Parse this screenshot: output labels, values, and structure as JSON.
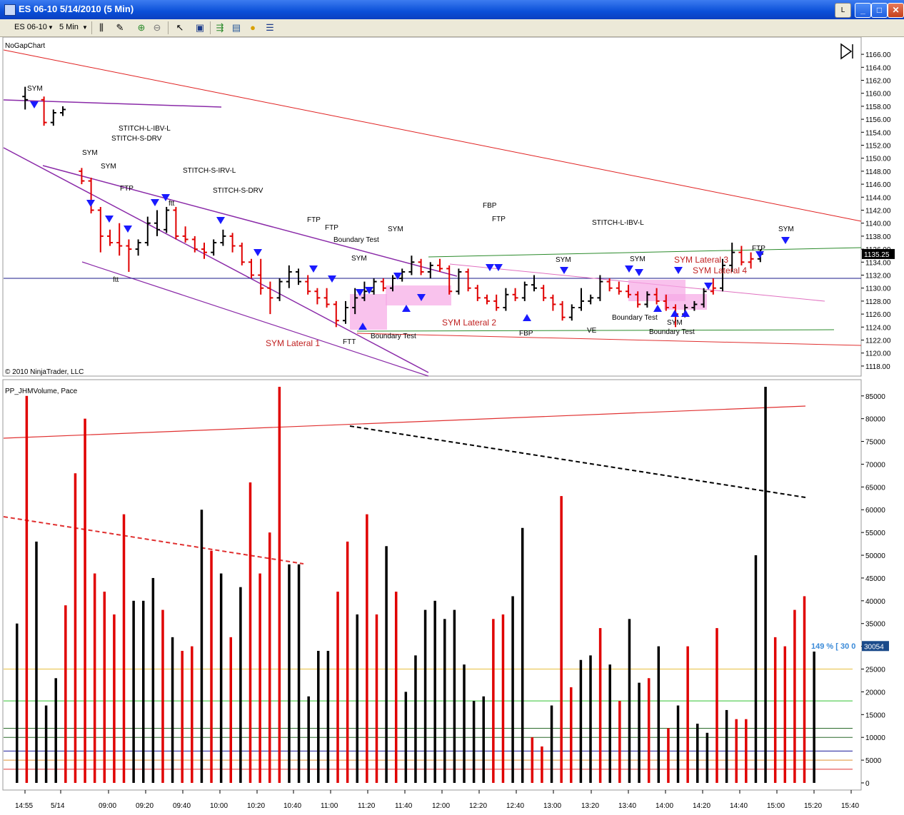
{
  "window": {
    "title": "ES 06-10  5/14/2010 (5 Min)",
    "btn_l": "L",
    "btn_min": "_",
    "btn_max": "□",
    "btn_close": "✕"
  },
  "toolbar": {
    "instrument": "ES 06-10",
    "interval": "5 Min"
  },
  "chart_data": [
    {
      "type": "bar",
      "subtype": "ohlc-price",
      "label_top_left": "NoGapChart",
      "copyright": "© 2010 NinjaTrader, LLC",
      "y_tick_labels": [
        "1166.00",
        "1164.00",
        "1162.00",
        "1160.00",
        "1158.00",
        "1156.00",
        "1154.00",
        "1152.00",
        "1150.00",
        "1148.00",
        "1146.00",
        "1144.00",
        "1142.00",
        "1140.00",
        "1138.00",
        "1136.00",
        "1134.00",
        "1132.00",
        "1130.00",
        "1128.00",
        "1126.00",
        "1124.00",
        "1122.00",
        "1120.00",
        "1118.00"
      ],
      "ylim": [
        1117,
        1167
      ],
      "last_price": "1135.25",
      "bars": [
        {
          "o": 1159.5,
          "h": 1161.0,
          "l": 1157.5,
          "c": 1159.0,
          "color": "black",
          "x": 1
        },
        {
          "o": 1159.0,
          "h": 1159.5,
          "l": 1155.0,
          "c": 1155.5,
          "color": "red",
          "x": 3
        },
        {
          "o": 1155.5,
          "h": 1157.5,
          "l": 1155.0,
          "c": 1157.0,
          "color": "black",
          "x": 4
        },
        {
          "o": 1157.0,
          "h": 1158.0,
          "l": 1156.5,
          "c": 1157.5,
          "color": "black",
          "x": 5
        },
        {
          "o": 1148.0,
          "h": 1148.5,
          "l": 1146.0,
          "c": 1146.5,
          "color": "red",
          "x": 7
        },
        {
          "o": 1146.5,
          "h": 1147.0,
          "l": 1141.5,
          "c": 1142.0,
          "color": "red",
          "x": 8
        },
        {
          "o": 1142.0,
          "h": 1142.5,
          "l": 1135.5,
          "c": 1138.0,
          "color": "red",
          "x": 9
        },
        {
          "o": 1138.0,
          "h": 1139.0,
          "l": 1136.5,
          "c": 1137.0,
          "color": "red",
          "x": 10
        },
        {
          "o": 1137.0,
          "h": 1140.0,
          "l": 1135.0,
          "c": 1136.5,
          "color": "red",
          "x": 11
        },
        {
          "o": 1136.5,
          "h": 1137.5,
          "l": 1132.5,
          "c": 1136.0,
          "color": "red",
          "x": 12
        },
        {
          "o": 1136.0,
          "h": 1137.5,
          "l": 1135.0,
          "c": 1137.0,
          "color": "black",
          "x": 13
        },
        {
          "o": 1137.0,
          "h": 1141.0,
          "l": 1136.5,
          "c": 1140.0,
          "color": "black",
          "x": 14
        },
        {
          "o": 1140.0,
          "h": 1142.0,
          "l": 1138.0,
          "c": 1139.0,
          "color": "black",
          "x": 15
        },
        {
          "o": 1139.0,
          "h": 1142.5,
          "l": 1138.5,
          "c": 1142.0,
          "color": "black",
          "x": 16
        },
        {
          "o": 1142.0,
          "h": 1142.5,
          "l": 1137.5,
          "c": 1138.0,
          "color": "red",
          "x": 17
        },
        {
          "o": 1138.0,
          "h": 1139.5,
          "l": 1137.0,
          "c": 1137.5,
          "color": "red",
          "x": 18
        },
        {
          "o": 1137.5,
          "h": 1138.0,
          "l": 1135.5,
          "c": 1136.0,
          "color": "red",
          "x": 19
        },
        {
          "o": 1136.0,
          "h": 1137.0,
          "l": 1134.5,
          "c": 1135.5,
          "color": "red",
          "x": 20
        },
        {
          "o": 1135.5,
          "h": 1137.5,
          "l": 1135.0,
          "c": 1137.0,
          "color": "black",
          "x": 21
        },
        {
          "o": 1137.0,
          "h": 1139.0,
          "l": 1136.5,
          "c": 1138.0,
          "color": "black",
          "x": 22
        },
        {
          "o": 1138.0,
          "h": 1138.5,
          "l": 1135.5,
          "c": 1136.5,
          "color": "red",
          "x": 23
        },
        {
          "o": 1136.5,
          "h": 1137.0,
          "l": 1133.5,
          "c": 1134.0,
          "color": "red",
          "x": 24
        },
        {
          "o": 1134.0,
          "h": 1134.5,
          "l": 1131.5,
          "c": 1132.0,
          "color": "red",
          "x": 25
        },
        {
          "o": 1132.0,
          "h": 1134.5,
          "l": 1129.0,
          "c": 1130.0,
          "color": "red",
          "x": 26
        },
        {
          "o": 1130.0,
          "h": 1131.0,
          "l": 1126.0,
          "c": 1128.5,
          "color": "red",
          "x": 27
        },
        {
          "o": 1128.5,
          "h": 1131.5,
          "l": 1128.0,
          "c": 1131.0,
          "color": "black",
          "x": 28
        },
        {
          "o": 1131.0,
          "h": 1133.5,
          "l": 1130.0,
          "c": 1132.5,
          "color": "black",
          "x": 29
        },
        {
          "o": 1132.5,
          "h": 1133.0,
          "l": 1130.5,
          "c": 1131.0,
          "color": "black",
          "x": 30
        },
        {
          "o": 1131.0,
          "h": 1132.0,
          "l": 1129.0,
          "c": 1129.5,
          "color": "red",
          "x": 31
        },
        {
          "o": 1129.5,
          "h": 1130.0,
          "l": 1127.5,
          "c": 1128.5,
          "color": "red",
          "x": 32
        },
        {
          "o": 1128.5,
          "h": 1130.0,
          "l": 1127.0,
          "c": 1127.5,
          "color": "red",
          "x": 33
        },
        {
          "o": 1127.5,
          "h": 1128.0,
          "l": 1124.0,
          "c": 1125.0,
          "color": "red",
          "x": 34
        },
        {
          "o": 1125.0,
          "h": 1128.0,
          "l": 1124.5,
          "c": 1127.0,
          "color": "black",
          "x": 35
        },
        {
          "o": 1127.0,
          "h": 1130.0,
          "l": 1126.0,
          "c": 1128.5,
          "color": "black",
          "x": 36
        },
        {
          "o": 1128.5,
          "h": 1131.0,
          "l": 1128.0,
          "c": 1129.5,
          "color": "black",
          "x": 37
        },
        {
          "o": 1129.5,
          "h": 1131.5,
          "l": 1129.0,
          "c": 1131.0,
          "color": "black",
          "x": 38
        },
        {
          "o": 1131.0,
          "h": 1131.5,
          "l": 1129.5,
          "c": 1130.0,
          "color": "red",
          "x": 39
        },
        {
          "o": 1130.0,
          "h": 1132.0,
          "l": 1129.5,
          "c": 1131.5,
          "color": "black",
          "x": 40
        },
        {
          "o": 1131.5,
          "h": 1133.0,
          "l": 1131.0,
          "c": 1132.5,
          "color": "black",
          "x": 41
        },
        {
          "o": 1132.5,
          "h": 1135.0,
          "l": 1132.0,
          "c": 1134.0,
          "color": "black",
          "x": 42
        },
        {
          "o": 1134.0,
          "h": 1134.5,
          "l": 1132.0,
          "c": 1132.5,
          "color": "red",
          "x": 43
        },
        {
          "o": 1132.5,
          "h": 1134.0,
          "l": 1131.5,
          "c": 1133.5,
          "color": "black",
          "x": 44
        },
        {
          "o": 1133.5,
          "h": 1134.5,
          "l": 1132.5,
          "c": 1133.0,
          "color": "red",
          "x": 45
        },
        {
          "o": 1133.0,
          "h": 1133.5,
          "l": 1129.0,
          "c": 1129.5,
          "color": "red",
          "x": 46
        },
        {
          "o": 1129.5,
          "h": 1133.0,
          "l": 1129.0,
          "c": 1132.5,
          "color": "black",
          "x": 47
        },
        {
          "o": 1132.5,
          "h": 1133.0,
          "l": 1129.5,
          "c": 1130.0,
          "color": "red",
          "x": 48
        },
        {
          "o": 1130.0,
          "h": 1130.5,
          "l": 1128.0,
          "c": 1128.5,
          "color": "red",
          "x": 49
        },
        {
          "o": 1128.5,
          "h": 1129.0,
          "l": 1127.5,
          "c": 1128.0,
          "color": "red",
          "x": 50
        },
        {
          "o": 1128.0,
          "h": 1129.0,
          "l": 1126.5,
          "c": 1127.0,
          "color": "red",
          "x": 51
        },
        {
          "o": 1127.0,
          "h": 1130.0,
          "l": 1126.5,
          "c": 1129.0,
          "color": "black",
          "x": 52
        },
        {
          "o": 1129.0,
          "h": 1130.0,
          "l": 1128.0,
          "c": 1128.5,
          "color": "red",
          "x": 53
        },
        {
          "o": 1128.5,
          "h": 1131.0,
          "l": 1128.0,
          "c": 1130.5,
          "color": "black",
          "x": 54
        },
        {
          "o": 1130.5,
          "h": 1132.0,
          "l": 1129.5,
          "c": 1130.0,
          "color": "black",
          "x": 55
        },
        {
          "o": 1130.0,
          "h": 1130.5,
          "l": 1128.0,
          "c": 1128.5,
          "color": "red",
          "x": 56
        },
        {
          "o": 1128.5,
          "h": 1129.0,
          "l": 1126.5,
          "c": 1127.5,
          "color": "red",
          "x": 57
        },
        {
          "o": 1127.5,
          "h": 1128.0,
          "l": 1125.0,
          "c": 1125.5,
          "color": "red",
          "x": 58
        },
        {
          "o": 1125.5,
          "h": 1127.5,
          "l": 1125.0,
          "c": 1127.0,
          "color": "black",
          "x": 59
        },
        {
          "o": 1127.0,
          "h": 1130.0,
          "l": 1126.5,
          "c": 1128.0,
          "color": "black",
          "x": 60
        },
        {
          "o": 1128.0,
          "h": 1129.0,
          "l": 1127.5,
          "c": 1128.5,
          "color": "black",
          "x": 61
        },
        {
          "o": 1128.5,
          "h": 1132.0,
          "l": 1128.0,
          "c": 1131.0,
          "color": "black",
          "x": 62
        },
        {
          "o": 1131.0,
          "h": 1131.5,
          "l": 1129.5,
          "c": 1130.0,
          "color": "red",
          "x": 63
        },
        {
          "o": 1130.0,
          "h": 1131.0,
          "l": 1129.0,
          "c": 1129.5,
          "color": "red",
          "x": 64
        },
        {
          "o": 1129.5,
          "h": 1130.5,
          "l": 1128.5,
          "c": 1129.0,
          "color": "red",
          "x": 65
        },
        {
          "o": 1129.0,
          "h": 1129.5,
          "l": 1127.0,
          "c": 1127.5,
          "color": "red",
          "x": 66
        },
        {
          "o": 1127.5,
          "h": 1129.5,
          "l": 1127.0,
          "c": 1129.0,
          "color": "black",
          "x": 67
        },
        {
          "o": 1129.0,
          "h": 1130.0,
          "l": 1127.5,
          "c": 1128.0,
          "color": "red",
          "x": 68
        },
        {
          "o": 1128.0,
          "h": 1129.0,
          "l": 1126.5,
          "c": 1127.0,
          "color": "red",
          "x": 69
        },
        {
          "o": 1127.0,
          "h": 1127.5,
          "l": 1124.0,
          "c": 1126.0,
          "color": "red",
          "x": 70
        },
        {
          "o": 1126.0,
          "h": 1127.5,
          "l": 1125.5,
          "c": 1127.0,
          "color": "black",
          "x": 71
        },
        {
          "o": 1127.0,
          "h": 1128.0,
          "l": 1126.5,
          "c": 1127.5,
          "color": "black",
          "x": 72
        },
        {
          "o": 1127.5,
          "h": 1130.0,
          "l": 1127.0,
          "c": 1129.5,
          "color": "black",
          "x": 73
        },
        {
          "o": 1129.5,
          "h": 1131.5,
          "l": 1129.0,
          "c": 1130.0,
          "color": "red",
          "x": 74
        },
        {
          "o": 1130.0,
          "h": 1134.5,
          "l": 1129.5,
          "c": 1133.5,
          "color": "black",
          "x": 75
        },
        {
          "o": 1133.5,
          "h": 1137.0,
          "l": 1132.5,
          "c": 1135.5,
          "color": "black",
          "x": 76
        },
        {
          "o": 1135.5,
          "h": 1136.5,
          "l": 1133.5,
          "c": 1134.0,
          "color": "red",
          "x": 77
        },
        {
          "o": 1134.0,
          "h": 1135.5,
          "l": 1133.0,
          "c": 1134.5,
          "color": "red",
          "x": 78
        },
        {
          "o": 1134.5,
          "h": 1136.0,
          "l": 1134.0,
          "c": 1135.25,
          "color": "black",
          "x": 79
        }
      ],
      "annotations": [
        "SYM",
        "STITCH-L-IBV-L",
        "STITCH-S-DRV",
        "SYM",
        "SYM",
        "FTP",
        "ftt",
        "STITCH-S-IRV-L",
        "STITCH-S-DRV",
        "ftt",
        "FTP",
        "FTP",
        "Boundary Test",
        "SYM",
        "SYM",
        "FTT",
        "Boundary Test",
        "SYM Lateral 1",
        "SYM Lateral 2",
        "FBP",
        "FTP",
        "FBP",
        "STITCH-L-IBV-L",
        "SYM",
        "VE",
        "SYM",
        "Boundary Test",
        "SYM Lateral 3",
        "SYM Lateral 4",
        "SYM",
        "Boundary Test",
        "FTP",
        "SYM"
      ]
    },
    {
      "type": "bar",
      "subtype": "volume",
      "title": "PP_JHMVolume, Pace",
      "y_tick_labels": [
        "85000",
        "80000",
        "75000",
        "70000",
        "65000",
        "60000",
        "55000",
        "50000",
        "45000",
        "40000",
        "35000",
        "30000",
        "25000",
        "20000",
        "15000",
        "10000",
        "5000",
        "0"
      ],
      "ylim": [
        0,
        87000
      ],
      "readout_pct": "149 % [ 30 0",
      "readout_value": "30054",
      "values": [
        35000,
        85000,
        53000,
        17000,
        23000,
        39000,
        68000,
        80000,
        46000,
        42000,
        37000,
        59000,
        40000,
        40000,
        45000,
        38000,
        32000,
        29000,
        30000,
        60000,
        51000,
        46000,
        32000,
        43000,
        66000,
        46000,
        55000,
        87000,
        48000,
        48000,
        19000,
        29000,
        29000,
        42000,
        53000,
        37000,
        59000,
        37000,
        52000,
        42000,
        20000,
        28000,
        38000,
        40000,
        36000,
        38000,
        26000,
        18000,
        19000,
        36000,
        37000,
        41000,
        56000,
        10000,
        8000,
        17000,
        63000,
        21000,
        27000,
        28000,
        34000,
        26000,
        18000,
        36000,
        22000,
        23000,
        30000,
        12000,
        17000,
        30000,
        13000,
        11000,
        34000,
        16000,
        14000,
        14000,
        50000,
        87000,
        32000,
        30000,
        38000,
        41000,
        30054
      ],
      "colors": [
        "black",
        "red",
        "black",
        "black",
        "black",
        "red",
        "red",
        "red",
        "red",
        "red",
        "red",
        "red",
        "black",
        "black",
        "black",
        "red",
        "black",
        "red",
        "red",
        "black",
        "red",
        "black",
        "red",
        "black",
        "red",
        "red",
        "red",
        "red",
        "black",
        "black",
        "black",
        "black",
        "black",
        "red",
        "red",
        "black",
        "red",
        "red",
        "black",
        "red",
        "black",
        "black",
        "black",
        "black",
        "black",
        "black",
        "black",
        "black",
        "black",
        "red",
        "red",
        "black",
        "black",
        "red",
        "red",
        "black",
        "red",
        "red",
        "black",
        "black",
        "red",
        "black",
        "red",
        "black",
        "black",
        "red",
        "black",
        "red",
        "black",
        "red",
        "black",
        "black",
        "red",
        "black",
        "red",
        "red",
        "black",
        "black",
        "red",
        "red",
        "red",
        "red",
        "black"
      ],
      "reference_levels": [
        25000,
        18000,
        12000,
        10000,
        7000,
        5000,
        3000
      ]
    }
  ],
  "x_tick_labels": [
    "14:55",
    "5/14",
    "09:00",
    "09:20",
    "09:40",
    "10:00",
    "10:20",
    "10:40",
    "11:00",
    "11:20",
    "11:40",
    "12:00",
    "12:20",
    "12:40",
    "13:00",
    "13:20",
    "13:40",
    "14:00",
    "14:20",
    "14:40",
    "15:00",
    "15:20",
    "15:40"
  ],
  "colors": {
    "up": "#000000",
    "down": "#e00000",
    "highlight": "#f7a8e6",
    "arrow": "#1a1aff"
  }
}
